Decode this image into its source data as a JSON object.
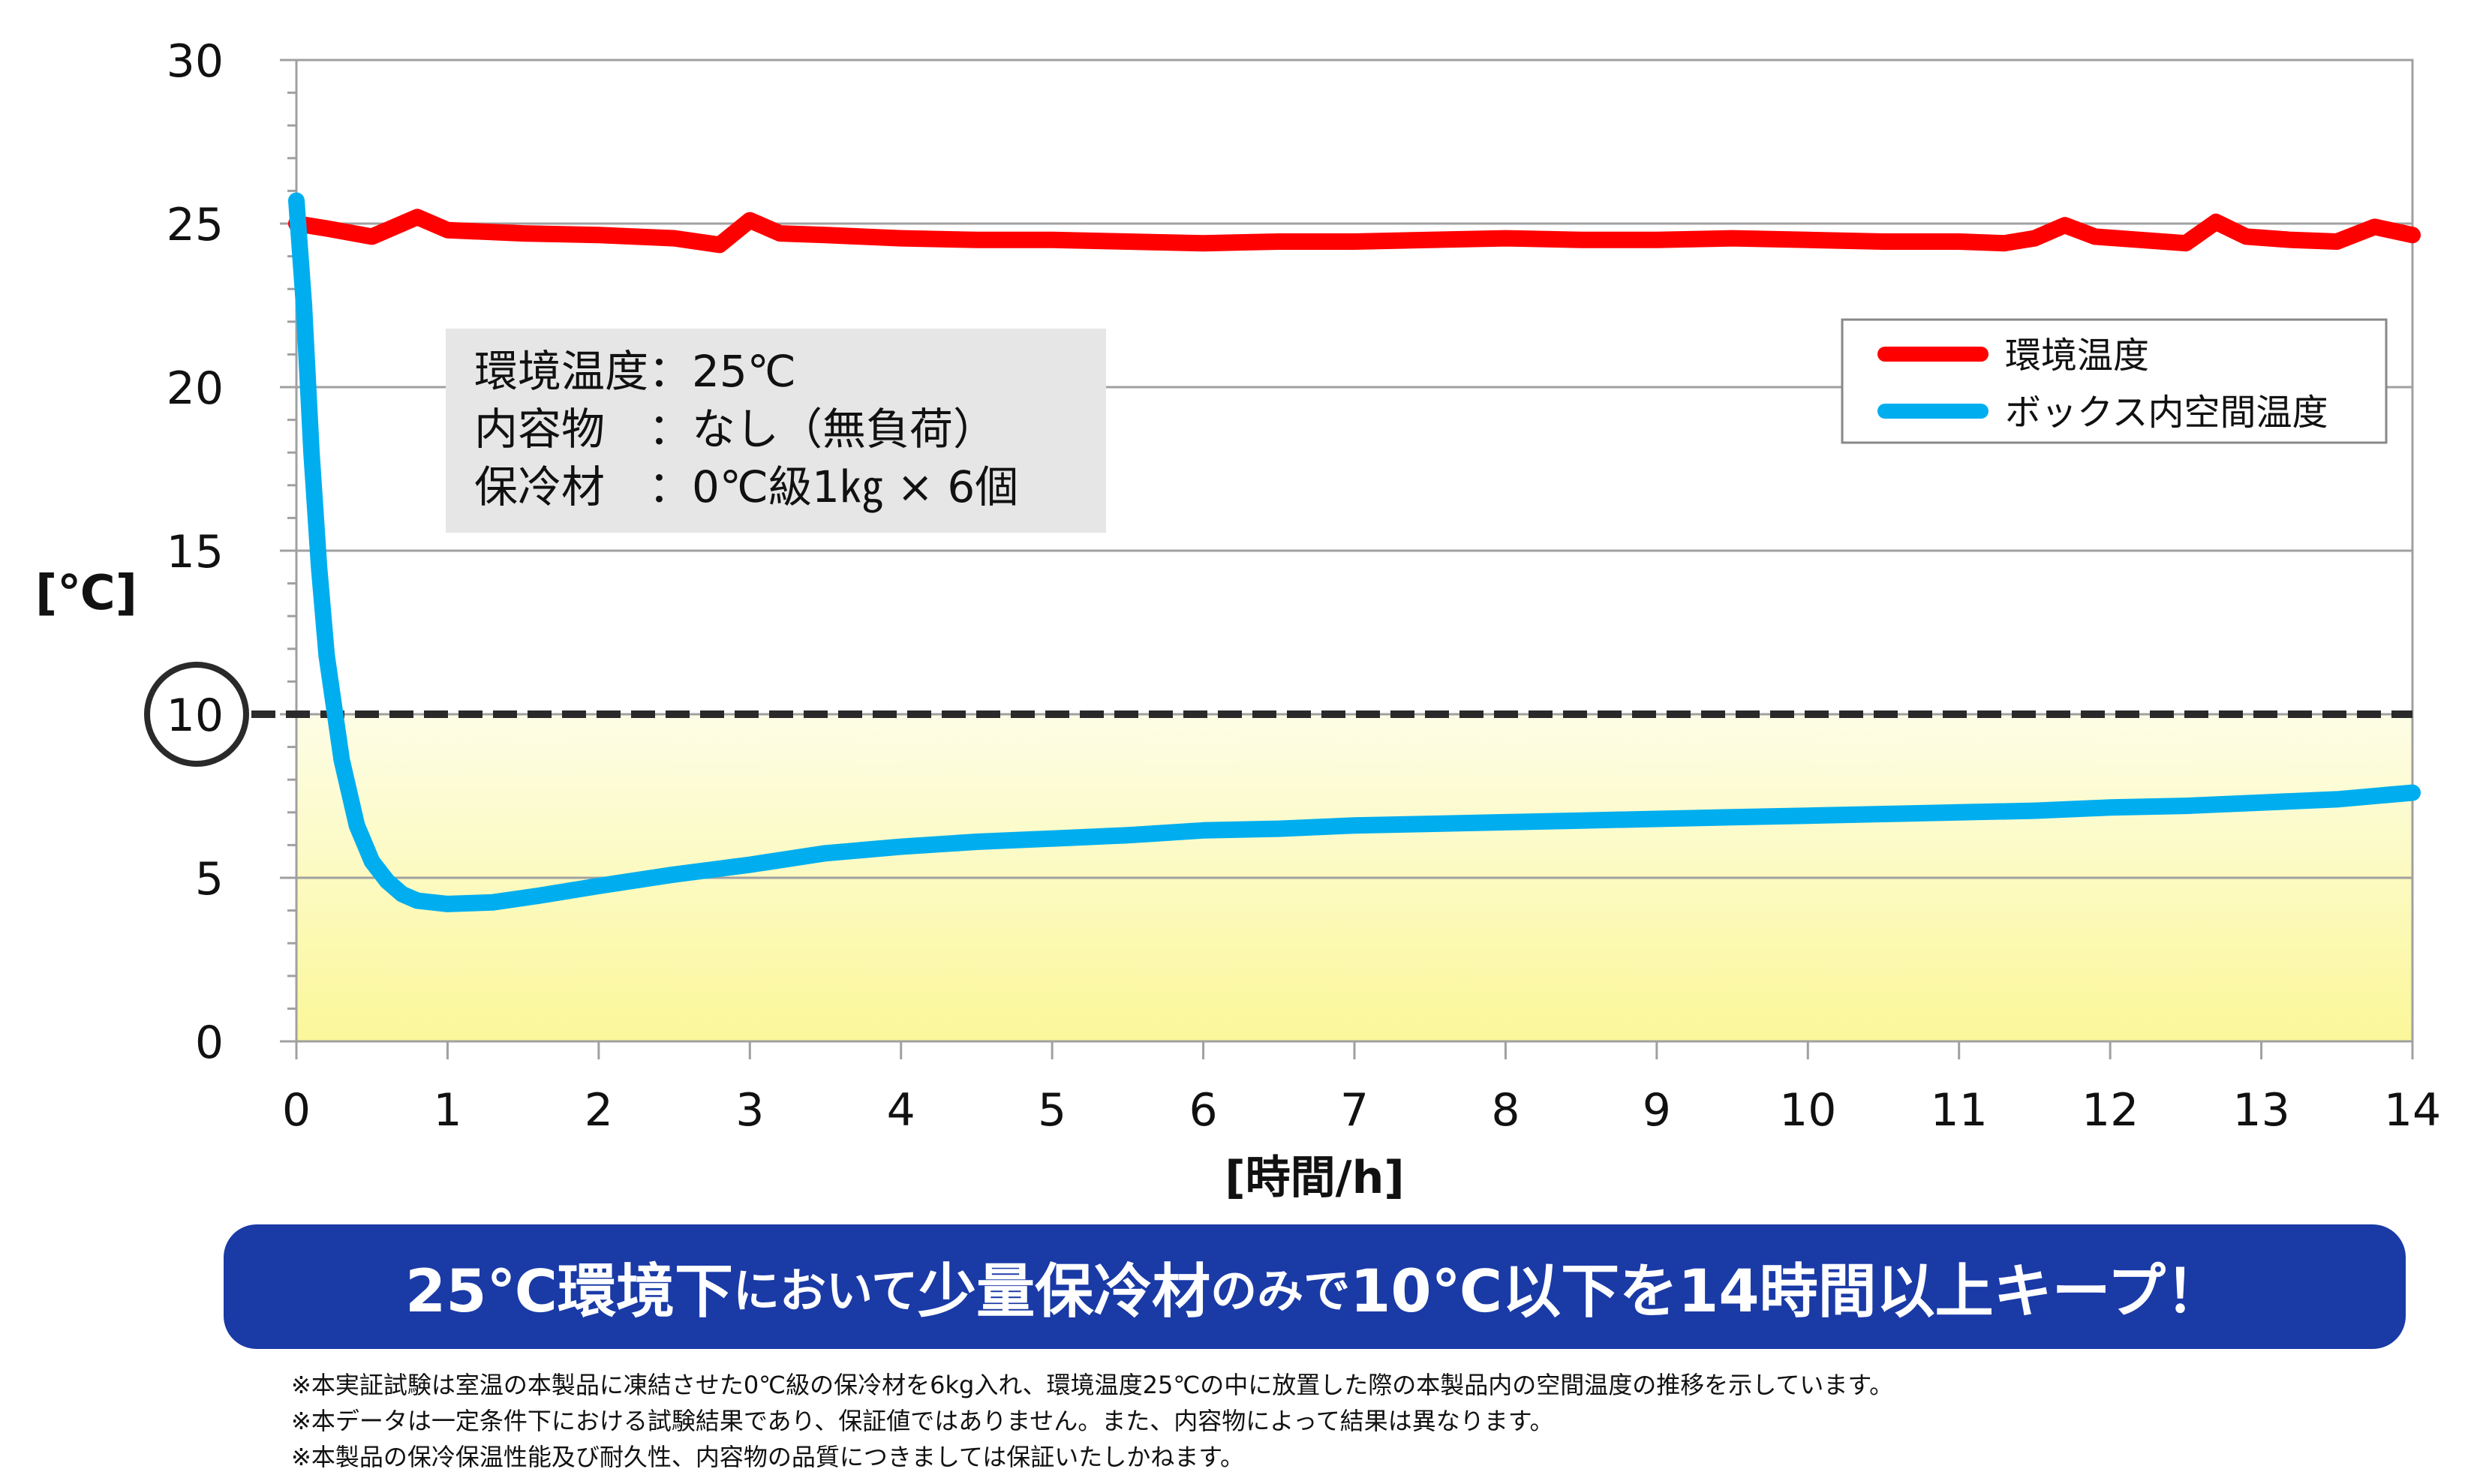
{
  "chart_data": {
    "type": "line",
    "xlabel": "[時間/h]",
    "ylabel": "[℃]",
    "xlim": [
      0,
      14
    ],
    "ylim": [
      0,
      30
    ],
    "x_ticks": [
      "0",
      "1",
      "2",
      "3",
      "4",
      "5",
      "6",
      "7",
      "8",
      "9",
      "10",
      "11",
      "12",
      "13",
      "14"
    ],
    "y_ticks": [
      "0",
      "5",
      "10",
      "15",
      "20",
      "25",
      "30"
    ],
    "grid": true,
    "legend_position": "top-right",
    "threshold": {
      "value": 10,
      "label": "10",
      "style": "dashed"
    },
    "highlight_band": {
      "from": 0,
      "to": 10
    },
    "series": [
      {
        "name": "環境温度",
        "color": "#ff0000",
        "points": [
          [
            0,
            25.0
          ],
          [
            0.2,
            24.85
          ],
          [
            0.5,
            24.6
          ],
          [
            0.8,
            25.2
          ],
          [
            1.0,
            24.8
          ],
          [
            1.5,
            24.7
          ],
          [
            2.0,
            24.65
          ],
          [
            2.5,
            24.55
          ],
          [
            2.8,
            24.35
          ],
          [
            3.0,
            25.1
          ],
          [
            3.2,
            24.7
          ],
          [
            3.5,
            24.65
          ],
          [
            4.0,
            24.55
          ],
          [
            4.5,
            24.5
          ],
          [
            5.0,
            24.5
          ],
          [
            5.5,
            24.45
          ],
          [
            6.0,
            24.4
          ],
          [
            6.5,
            24.45
          ],
          [
            7.0,
            24.45
          ],
          [
            7.5,
            24.5
          ],
          [
            8.0,
            24.55
          ],
          [
            8.5,
            24.5
          ],
          [
            9.0,
            24.5
          ],
          [
            9.5,
            24.55
          ],
          [
            10.0,
            24.5
          ],
          [
            10.5,
            24.45
          ],
          [
            11.0,
            24.45
          ],
          [
            11.3,
            24.4
          ],
          [
            11.5,
            24.55
          ],
          [
            11.7,
            24.95
          ],
          [
            11.9,
            24.6
          ],
          [
            12.2,
            24.5
          ],
          [
            12.5,
            24.4
          ],
          [
            12.7,
            25.05
          ],
          [
            12.9,
            24.6
          ],
          [
            13.2,
            24.5
          ],
          [
            13.5,
            24.45
          ],
          [
            13.75,
            24.9
          ],
          [
            14.0,
            24.65
          ]
        ]
      },
      {
        "name": "ボックス内空間温度",
        "color": "#00aeef",
        "points": [
          [
            0,
            25.7
          ],
          [
            0.05,
            22.5
          ],
          [
            0.1,
            18.0
          ],
          [
            0.15,
            14.5
          ],
          [
            0.2,
            11.8
          ],
          [
            0.3,
            8.6
          ],
          [
            0.4,
            6.6
          ],
          [
            0.5,
            5.5
          ],
          [
            0.6,
            4.9
          ],
          [
            0.7,
            4.5
          ],
          [
            0.8,
            4.3
          ],
          [
            1.0,
            4.2
          ],
          [
            1.3,
            4.25
          ],
          [
            1.6,
            4.45
          ],
          [
            2.0,
            4.75
          ],
          [
            2.5,
            5.1
          ],
          [
            3.0,
            5.4
          ],
          [
            3.5,
            5.75
          ],
          [
            4.0,
            5.95
          ],
          [
            4.5,
            6.1
          ],
          [
            5.0,
            6.2
          ],
          [
            5.5,
            6.3
          ],
          [
            6.0,
            6.45
          ],
          [
            6.5,
            6.5
          ],
          [
            7.0,
            6.6
          ],
          [
            7.5,
            6.65
          ],
          [
            8.0,
            6.7
          ],
          [
            8.5,
            6.75
          ],
          [
            9.0,
            6.8
          ],
          [
            9.5,
            6.85
          ],
          [
            10.0,
            6.9
          ],
          [
            10.5,
            6.95
          ],
          [
            11.0,
            7.0
          ],
          [
            11.5,
            7.05
          ],
          [
            12.0,
            7.15
          ],
          [
            12.5,
            7.2
          ],
          [
            13.0,
            7.3
          ],
          [
            13.5,
            7.4
          ],
          [
            14.0,
            7.6
          ]
        ]
      }
    ]
  },
  "conditions_box": {
    "line1": "環境温度：25℃",
    "line2": "内容物　：なし（無負荷）",
    "line3": "保冷材　：0℃級1㎏ × 6個"
  },
  "banner": {
    "part1": "25℃環境下",
    "part2": "において",
    "part3": "少量保冷材",
    "part4": "のみで",
    "part5": "10℃以下を14時間以上キープ！"
  },
  "notes": [
    "※本実証試験は室温の本製品に凍結させた0℃級の保冷材を6kg入れ、環境温度25℃の中に放置した際の本製品内の空間温度の推移を示しています。",
    "※本データは一定条件下における試験結果であり、保証値ではありません。また、内容物によって結果は異なります。",
    "※本製品の保冷保温性能及び耐久性、内容物の品質につきましては保証いたしかねます。"
  ]
}
